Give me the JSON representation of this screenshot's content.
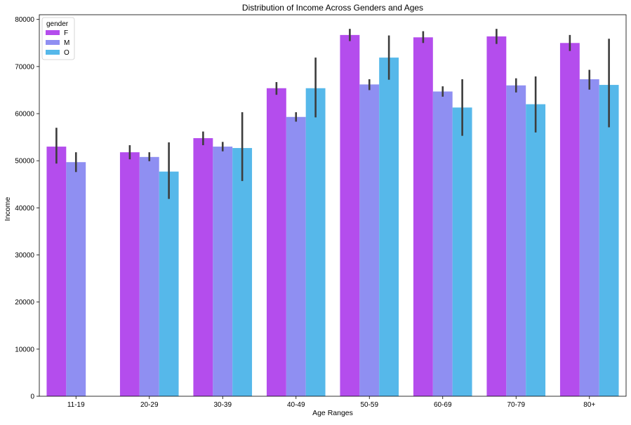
{
  "chart_data": {
    "type": "bar",
    "title": "Distribution of Income Across Genders and Ages",
    "xlabel": "Age Ranges",
    "ylabel": "Income",
    "ylim": [
      0,
      81000
    ],
    "yticks": [
      0,
      10000,
      20000,
      30000,
      40000,
      50000,
      60000,
      70000,
      80000
    ],
    "grid": false,
    "legend": {
      "title": "gender",
      "placement": "top-left"
    },
    "categories": [
      "11-19",
      "20-29",
      "30-39",
      "40-49",
      "50-59",
      "60-69",
      "70-79",
      "80+"
    ],
    "series": [
      {
        "name": "F",
        "color": "#b44ded",
        "values": [
          53000,
          51800,
          54800,
          65400,
          76700,
          76200,
          76400,
          75000
        ],
        "err_low": [
          49400,
          50300,
          53300,
          64000,
          75400,
          75000,
          74800,
          73300
        ],
        "err_high": [
          57000,
          53300,
          56200,
          66700,
          78000,
          77500,
          78000,
          76700
        ]
      },
      {
        "name": "M",
        "color": "#8f8ff2",
        "values": [
          49700,
          50800,
          53000,
          59300,
          66200,
          64700,
          66000,
          67300
        ],
        "err_low": [
          47600,
          49900,
          52000,
          58300,
          65000,
          63600,
          64500,
          65100
        ],
        "err_high": [
          51800,
          51800,
          54000,
          60300,
          67300,
          65800,
          67500,
          69300
        ]
      },
      {
        "name": "O",
        "color": "#56b8ea",
        "values": [
          null,
          47700,
          52700,
          65400,
          71900,
          61300,
          62000,
          66100
        ],
        "err_low": [
          null,
          41900,
          45700,
          59200,
          67200,
          55300,
          56000,
          57100
        ],
        "err_high": [
          null,
          53900,
          60300,
          71900,
          76600,
          67300,
          67900,
          75900
        ]
      }
    ]
  }
}
